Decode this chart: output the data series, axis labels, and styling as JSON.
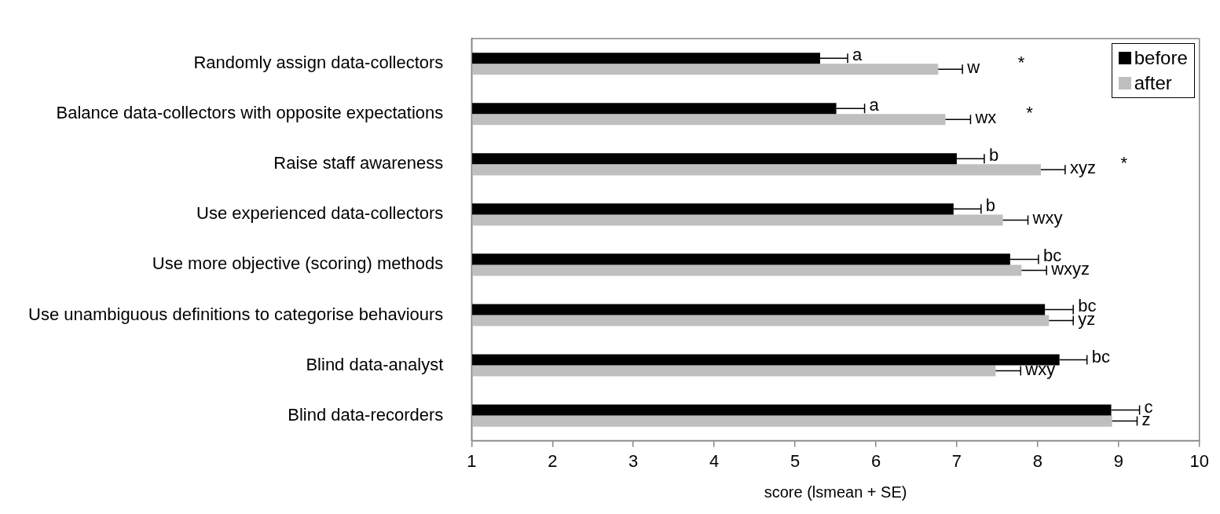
{
  "chart_data": {
    "type": "bar",
    "orientation": "horizontal",
    "xlabel": "score (lsmean + SE)",
    "categories": [
      "Randomly assign data-collectors",
      "Balance data-collectors with opposite expectations",
      "Raise staff awareness",
      "Use experienced data-collectors",
      "Use more objective (scoring) methods",
      "Use unambiguous definitions to categorise behaviours",
      "Blind data-analyst",
      "Blind data-recorders"
    ],
    "series": [
      {
        "name": "before",
        "color": "#000000",
        "values": [
          5.31,
          5.51,
          7.0,
          6.96,
          7.66,
          8.09,
          8.27,
          8.91
        ],
        "errors": [
          [
            5.31,
            5.65
          ],
          [
            5.51,
            5.86
          ],
          [
            7.0,
            7.34
          ],
          [
            6.96,
            7.3
          ],
          [
            7.66,
            8.01
          ],
          [
            8.09,
            8.44
          ],
          [
            8.27,
            8.61
          ],
          [
            8.91,
            9.26
          ]
        ],
        "value_labels": [
          "a",
          "a",
          "b",
          "b",
          "bc",
          "bc",
          "bc",
          "c"
        ]
      },
      {
        "name": "after",
        "color": "#bfbfbf",
        "values": [
          6.77,
          6.86,
          8.04,
          7.57,
          7.8,
          8.14,
          7.48,
          8.92
        ],
        "errors": [
          [
            6.77,
            7.07
          ],
          [
            6.86,
            7.17
          ],
          [
            8.04,
            8.34
          ],
          [
            7.57,
            7.88
          ],
          [
            7.8,
            8.11
          ],
          [
            8.14,
            8.44
          ],
          [
            7.48,
            7.79
          ],
          [
            8.92,
            9.23
          ]
        ],
        "value_labels": [
          "w",
          "wx",
          "xyz",
          "wxy",
          "wxyz",
          "yz",
          "wxy",
          "z"
        ]
      }
    ],
    "annotations": [
      "*",
      "*",
      "*"
    ],
    "xlim": [
      1,
      10
    ],
    "xticks": [
      1,
      2,
      3,
      4,
      5,
      6,
      7,
      8,
      9,
      10
    ],
    "legend": "top right"
  }
}
